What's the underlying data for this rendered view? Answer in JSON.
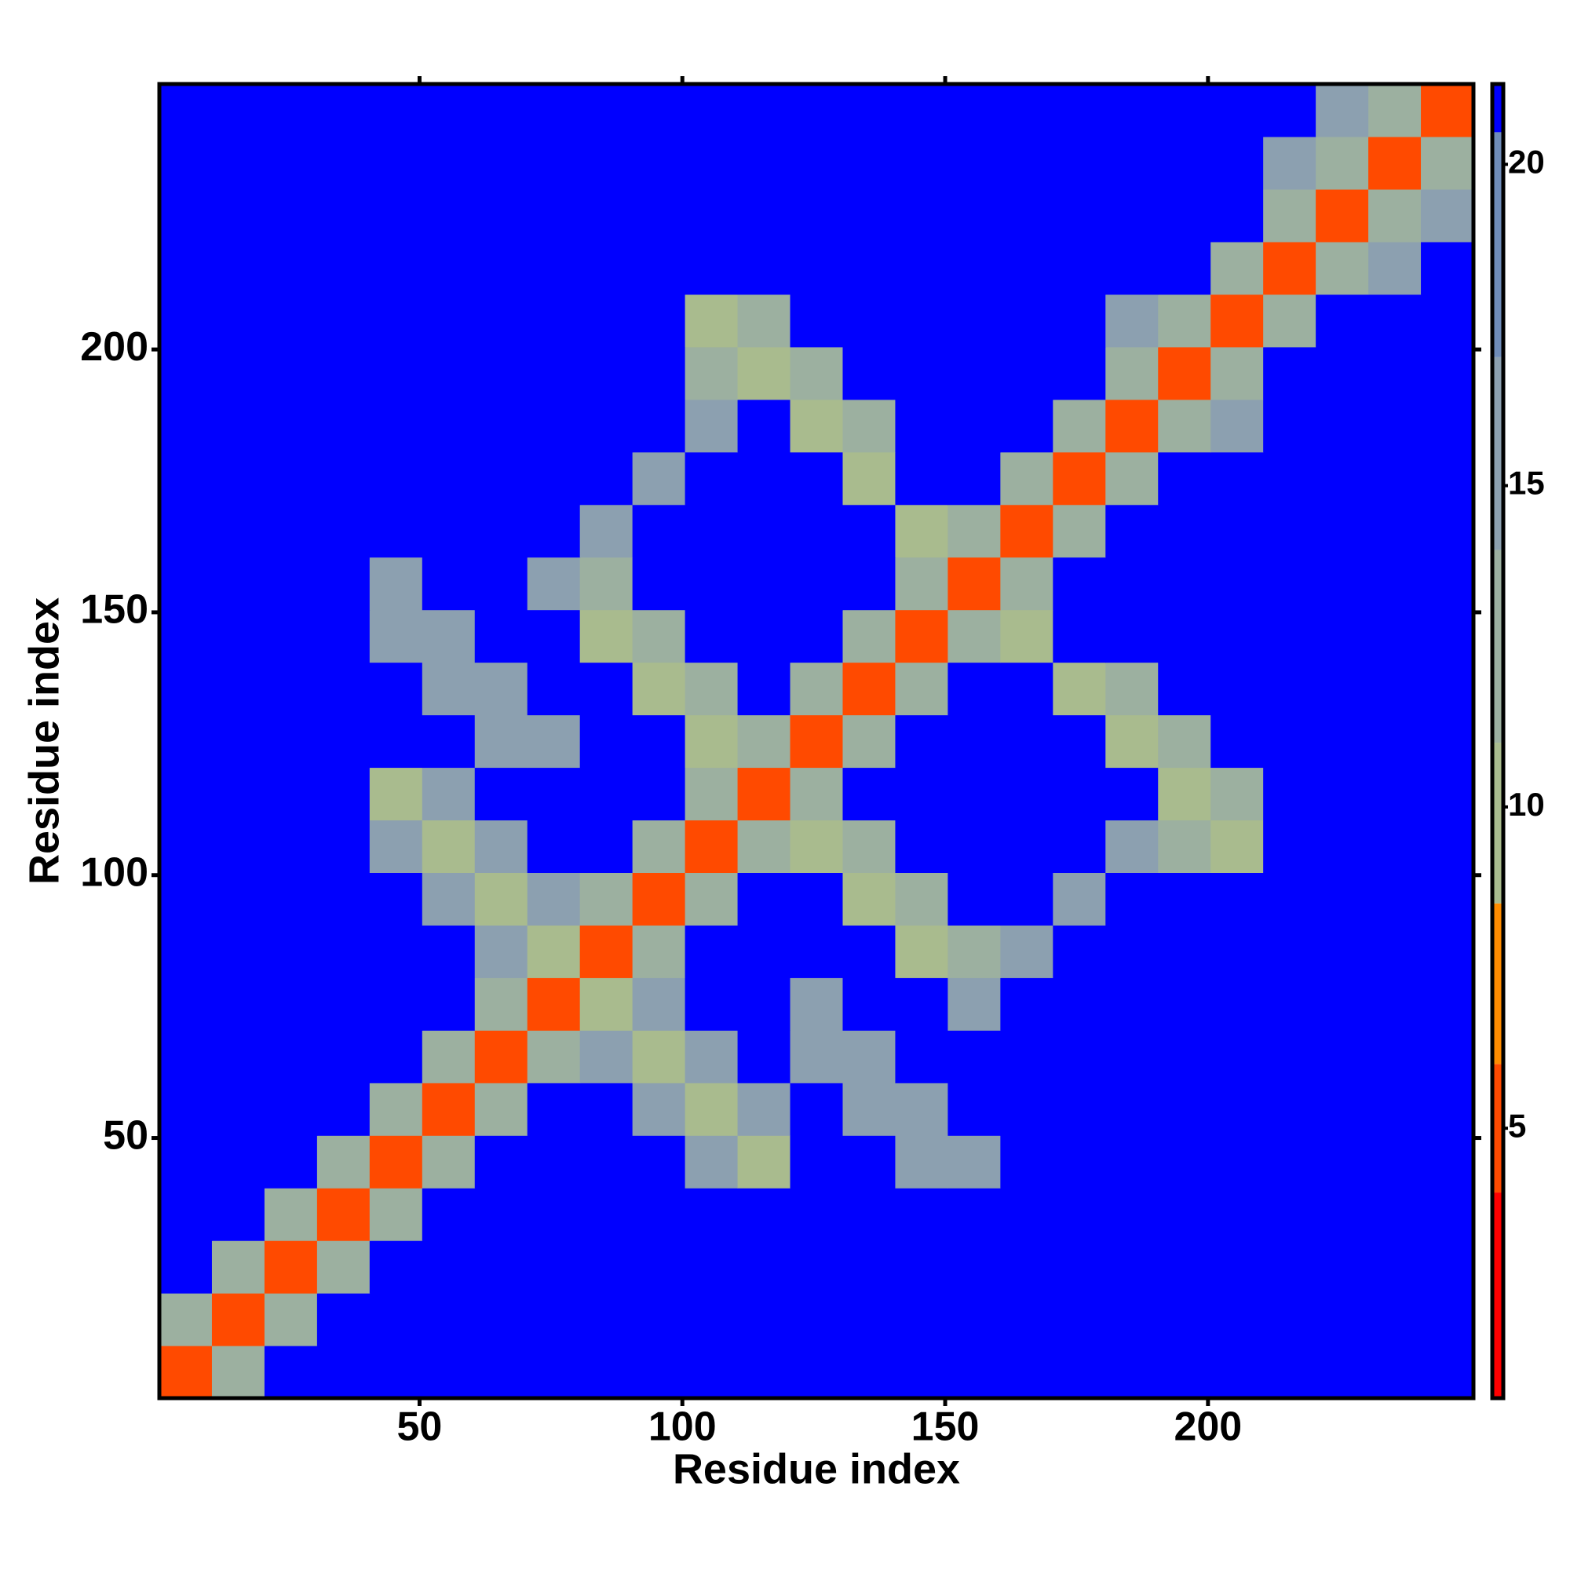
{
  "chart_data": {
    "type": "heatmap",
    "xlabel": "Residue index",
    "ylabel": "Residue index",
    "xbins": [
      0.5,
      10.5,
      20.5,
      30.5,
      40.5,
      50.5,
      60.5,
      70.5,
      80.5,
      90.5,
      100.5,
      110.5,
      120.5,
      130.5,
      140.5,
      150.5,
      160.5,
      170.5,
      180.5,
      190.5,
      200.5,
      210.5,
      220.5,
      230.5,
      240.5,
      250.5
    ],
    "ybins": [
      0.5,
      10.5,
      20.5,
      30.5,
      40.5,
      50.5,
      60.5,
      70.5,
      80.5,
      90.5,
      100.5,
      110.5,
      120.5,
      130.5,
      140.5,
      150.5,
      160.5,
      170.5,
      180.5,
      190.5,
      200.5,
      210.5,
      220.5,
      230.5,
      240.5,
      250.5
    ],
    "xlim": [
      0.5,
      250.5
    ],
    "ylim": [
      0.5,
      250.5
    ],
    "xticks": [
      50,
      100,
      150,
      200
    ],
    "yticks": [
      50,
      100,
      150,
      200
    ],
    "grid": false,
    "colorbar": {
      "lim": [
        0.8,
        21.25
      ],
      "ticks": [
        5,
        10,
        15,
        20
      ],
      "levels": [
        4,
        6,
        8.5,
        11,
        14,
        17,
        20.5,
        21.25
      ],
      "colors": [
        "#ff0000",
        "#ff4a00",
        "#ff8c00",
        "#a9bb8e",
        "#9cb0a0",
        "#8ca0b0",
        "#6f8cb8",
        "#0000ff"
      ]
    },
    "values": [
      [
        5,
        13,
        21,
        21,
        21,
        21,
        21,
        21,
        21,
        21,
        21,
        21,
        21,
        21,
        21,
        21,
        21,
        21,
        21,
        21,
        21,
        21,
        21,
        21,
        21
      ],
      [
        13,
        5,
        13,
        21,
        21,
        21,
        21,
        21,
        21,
        21,
        21,
        21,
        21,
        21,
        21,
        21,
        21,
        21,
        21,
        21,
        21,
        21,
        21,
        21,
        21
      ],
      [
        21,
        13,
        5,
        13,
        21,
        21,
        21,
        21,
        21,
        21,
        21,
        21,
        21,
        21,
        21,
        21,
        21,
        21,
        21,
        21,
        21,
        21,
        21,
        21,
        21
      ],
      [
        21,
        21,
        13,
        5,
        13,
        21,
        21,
        21,
        21,
        21,
        21,
        21,
        21,
        21,
        21,
        21,
        21,
        21,
        21,
        21,
        21,
        21,
        21,
        21,
        21
      ],
      [
        21,
        21,
        21,
        13,
        5,
        13,
        21,
        21,
        21,
        21,
        17,
        10,
        21,
        21,
        17,
        17,
        21,
        21,
        21,
        21,
        21,
        21,
        21,
        21,
        21
      ],
      [
        21,
        21,
        21,
        21,
        13,
        5,
        13,
        21,
        21,
        17,
        10,
        17,
        21,
        17,
        17,
        21,
        21,
        21,
        21,
        21,
        21,
        21,
        21,
        21,
        21
      ],
      [
        21,
        21,
        21,
        21,
        21,
        13,
        5,
        13,
        17,
        10,
        17,
        21,
        17,
        17,
        21,
        21,
        21,
        21,
        21,
        21,
        21,
        21,
        21,
        21,
        21
      ],
      [
        21,
        21,
        21,
        21,
        21,
        21,
        13,
        5,
        10,
        17,
        21,
        21,
        17,
        21,
        21,
        15,
        21,
        21,
        21,
        21,
        21,
        21,
        21,
        21,
        21
      ],
      [
        21,
        21,
        21,
        21,
        21,
        21,
        17,
        10,
        5,
        13,
        21,
        21,
        21,
        21,
        10,
        13,
        15,
        21,
        21,
        21,
        21,
        21,
        21,
        21,
        21
      ],
      [
        21,
        21,
        21,
        21,
        21,
        17,
        10,
        17,
        13,
        5,
        13,
        21,
        21,
        10,
        13,
        21,
        21,
        15,
        21,
        21,
        21,
        21,
        21,
        21,
        21
      ],
      [
        21,
        21,
        21,
        21,
        17,
        10,
        17,
        21,
        21,
        13,
        5,
        13,
        10,
        13,
        21,
        21,
        21,
        21,
        15,
        13,
        10,
        21,
        21,
        21,
        21
      ],
      [
        21,
        21,
        21,
        21,
        10,
        17,
        21,
        21,
        21,
        21,
        13,
        5,
        13,
        21,
        21,
        21,
        21,
        21,
        21,
        10,
        13,
        21,
        21,
        21,
        21
      ],
      [
        21,
        21,
        21,
        21,
        21,
        21,
        17,
        17,
        21,
        21,
        10,
        13,
        5,
        13,
        21,
        21,
        21,
        21,
        10,
        13,
        21,
        21,
        21,
        21,
        21
      ],
      [
        21,
        21,
        21,
        21,
        21,
        17,
        17,
        21,
        21,
        10,
        13,
        21,
        13,
        5,
        13,
        21,
        21,
        10,
        13,
        21,
        21,
        21,
        21,
        21,
        21
      ],
      [
        21,
        21,
        21,
        21,
        17,
        17,
        21,
        21,
        10,
        13,
        21,
        21,
        21,
        13,
        5,
        13,
        10,
        21,
        21,
        21,
        21,
        21,
        21,
        21,
        21
      ],
      [
        21,
        21,
        21,
        21,
        17,
        21,
        21,
        15,
        13,
        21,
        21,
        21,
        21,
        21,
        13,
        5,
        13,
        21,
        21,
        21,
        21,
        21,
        21,
        21,
        21
      ],
      [
        21,
        21,
        21,
        21,
        21,
        21,
        21,
        21,
        15,
        21,
        21,
        21,
        21,
        21,
        10,
        13,
        5,
        13,
        21,
        21,
        21,
        21,
        21,
        21,
        21
      ],
      [
        21,
        21,
        21,
        21,
        21,
        21,
        21,
        21,
        21,
        15,
        21,
        21,
        21,
        10,
        21,
        21,
        13,
        5,
        13,
        21,
        21,
        21,
        21,
        21,
        21
      ],
      [
        21,
        21,
        21,
        21,
        21,
        21,
        21,
        21,
        21,
        21,
        15,
        21,
        10,
        13,
        21,
        21,
        21,
        13,
        5,
        13,
        16,
        21,
        21,
        21,
        21
      ],
      [
        21,
        21,
        21,
        21,
        21,
        21,
        21,
        21,
        21,
        21,
        13,
        10,
        13,
        21,
        21,
        21,
        21,
        21,
        13,
        5,
        13,
        21,
        21,
        21,
        21
      ],
      [
        21,
        21,
        21,
        21,
        21,
        21,
        21,
        21,
        21,
        21,
        10,
        13,
        21,
        21,
        21,
        21,
        21,
        21,
        16,
        13,
        5,
        13,
        21,
        21,
        21
      ],
      [
        21,
        21,
        21,
        21,
        21,
        21,
        21,
        21,
        21,
        21,
        21,
        21,
        21,
        21,
        21,
        21,
        21,
        21,
        21,
        21,
        13,
        5,
        12,
        16,
        21
      ],
      [
        21,
        21,
        21,
        21,
        21,
        21,
        21,
        21,
        21,
        21,
        21,
        21,
        21,
        21,
        21,
        21,
        21,
        21,
        21,
        21,
        21,
        12,
        5,
        12,
        16
      ],
      [
        21,
        21,
        21,
        21,
        21,
        21,
        21,
        21,
        21,
        21,
        21,
        21,
        21,
        21,
        21,
        21,
        21,
        21,
        21,
        21,
        21,
        16,
        12,
        5,
        12
      ],
      [
        21,
        21,
        21,
        21,
        21,
        21,
        21,
        21,
        21,
        21,
        21,
        21,
        21,
        21,
        21,
        21,
        21,
        21,
        21,
        21,
        21,
        21,
        16,
        12,
        5
      ]
    ]
  }
}
